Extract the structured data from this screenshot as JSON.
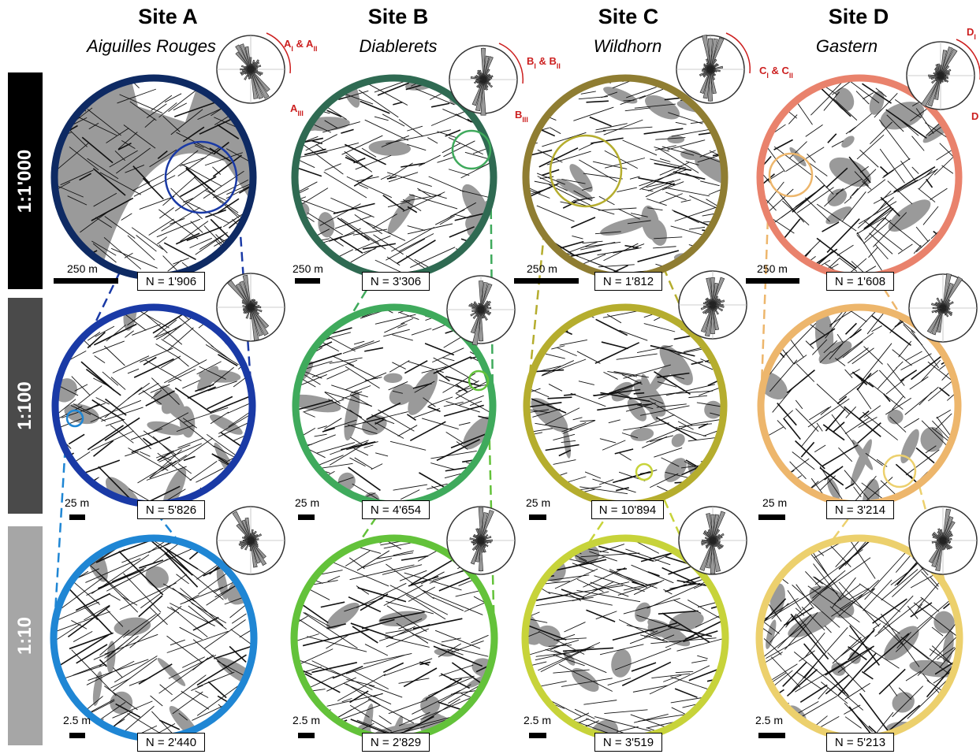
{
  "colors": {
    "outcrop_gray": "#9a9a9a",
    "annotation_red": "#cc1f1f",
    "band_dark": "#000000",
    "band_mid": "#4a4a4a",
    "band_light": "#a6a6a6"
  },
  "row_labels": [
    "1:1'000",
    "1:100",
    "1:10"
  ],
  "sites": [
    {
      "title": "Site A",
      "subtitle": "Aiguilles Rouges",
      "ring_colors": [
        "#0e2a63",
        "#1a3aa6",
        "#1f86d4"
      ],
      "counts": [
        "N = 1'906",
        "N = 5'826",
        "N = 2'440"
      ],
      "scales": [
        "250 m",
        "25 m",
        "2.5 m"
      ],
      "set_labels": [
        {
          "main": "A",
          "sub": "I",
          "mid": " & A",
          "sub2": "II"
        },
        {
          "main": "A",
          "sub": "III"
        }
      ]
    },
    {
      "title": "Site B",
      "subtitle": "Diablerets",
      "ring_colors": [
        "#2f6a52",
        "#3faa5c",
        "#63c23a"
      ],
      "counts": [
        "N = 3'306",
        "N = 4'654",
        "N = 2'829"
      ],
      "scales": [
        "250 m",
        "25 m",
        "2.5 m"
      ],
      "set_labels": [
        {
          "main": "B",
          "sub": "I",
          "mid": " & B",
          "sub2": "II"
        },
        {
          "main": "B",
          "sub": "III"
        }
      ]
    },
    {
      "title": "Site C",
      "subtitle": "Wildhorn",
      "ring_colors": [
        "#8f7d32",
        "#b5ad2e",
        "#c7d33a"
      ],
      "counts": [
        "N = 1'812",
        "N = 10'894",
        "N = 3'519"
      ],
      "scales": [
        "250 m",
        "25 m",
        "2.5 m"
      ],
      "set_labels": [
        {
          "main": "C",
          "sub": "I",
          "mid": " & C",
          "sub2": "II"
        }
      ]
    },
    {
      "title": "Site D",
      "subtitle": "Gastern",
      "ring_colors": [
        "#e9826c",
        "#edb66c",
        "#ecd06d"
      ],
      "counts": [
        "N = 1'608",
        "N = 3'214",
        "N = 5'213"
      ],
      "scales": [
        "250 m",
        "25 m",
        "2.5 m"
      ],
      "set_labels": [
        {
          "main": "D",
          "sub": "I"
        },
        {
          "main": "D",
          "sub": ""
        }
      ]
    }
  ]
}
